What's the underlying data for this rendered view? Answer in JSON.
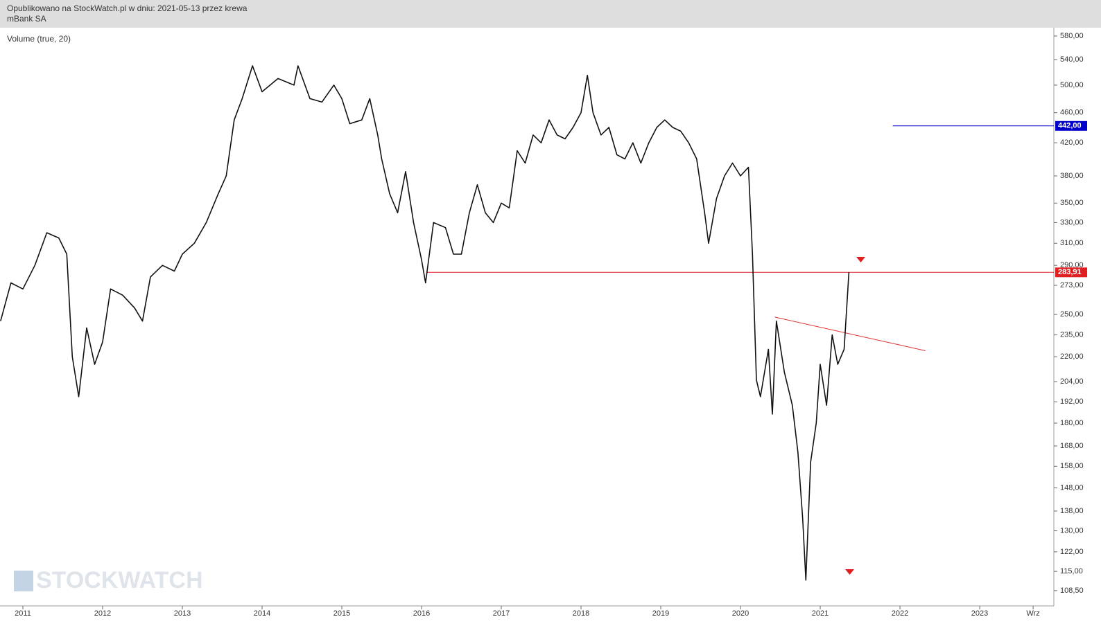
{
  "header": {
    "line1": "Opublikowano na StockWatch.pl w dniu: 2021-05-13 przez krewa",
    "line2": "mBank SA"
  },
  "watermark": "STOCKWATCH",
  "chart_data": {
    "type": "line",
    "indicator_label": "Volume (true, 20)",
    "log_y": true,
    "xlim": [
      2010.713,
      2023.93
    ],
    "xticks": [
      2011,
      2012,
      2013,
      2014,
      2015,
      2016,
      2017,
      2018,
      2019,
      2020,
      2021,
      2022,
      2023,
      {
        "value": 2023.67,
        "label": "Wrz"
      }
    ],
    "ylim": [
      103.6,
      594.7
    ],
    "yticks": [
      {
        "value": 108.5,
        "label": "108,50"
      },
      {
        "value": 115,
        "label": "115,00"
      },
      {
        "value": 122,
        "label": "122,00"
      },
      {
        "value": 130,
        "label": "130,00"
      },
      {
        "value": 138,
        "label": "138,00"
      },
      {
        "value": 148,
        "label": "148,00"
      },
      {
        "value": 158,
        "label": "158,00"
      },
      {
        "value": 168,
        "label": "168,00"
      },
      {
        "value": 180,
        "label": "180,00"
      },
      {
        "value": 192,
        "label": "192,00"
      },
      {
        "value": 204,
        "label": "204,00"
      },
      {
        "value": 220,
        "label": "220,00"
      },
      {
        "value": 235,
        "label": "235,00"
      },
      {
        "value": 250,
        "label": "250,00"
      },
      {
        "value": 273,
        "label": "273,00"
      },
      {
        "value": 290,
        "label": "290,00"
      },
      {
        "value": 310,
        "label": "310,00"
      },
      {
        "value": 330,
        "label": "330,00"
      },
      {
        "value": 350,
        "label": "350,00"
      },
      {
        "value": 380,
        "label": "380,00"
      },
      {
        "value": 420,
        "label": "420,00"
      },
      {
        "value": 460,
        "label": "460,00"
      },
      {
        "value": 500,
        "label": "500,00"
      },
      {
        "value": 540,
        "label": "540,00"
      },
      {
        "value": 580,
        "label": "580,00"
      }
    ],
    "series": [
      {
        "name": "mBank SA",
        "color": "#111111",
        "x": [
          2010.72,
          2010.85,
          2011.0,
          2011.15,
          2011.3,
          2011.45,
          2011.55,
          2011.62,
          2011.7,
          2011.8,
          2011.9,
          2012.0,
          2012.1,
          2012.25,
          2012.4,
          2012.5,
          2012.6,
          2012.75,
          2012.9,
          2013.0,
          2013.15,
          2013.3,
          2013.45,
          2013.55,
          2013.65,
          2013.75,
          2013.88,
          2014.0,
          2014.2,
          2014.4,
          2014.45,
          2014.6,
          2014.75,
          2014.9,
          2015.0,
          2015.1,
          2015.25,
          2015.35,
          2015.45,
          2015.5,
          2015.6,
          2015.7,
          2015.8,
          2015.9,
          2016.0,
          2016.05,
          2016.15,
          2016.3,
          2016.4,
          2016.5,
          2016.6,
          2016.7,
          2016.8,
          2016.9,
          2017.0,
          2017.1,
          2017.2,
          2017.3,
          2017.4,
          2017.5,
          2017.6,
          2017.7,
          2017.8,
          2017.9,
          2018.0,
          2018.08,
          2018.15,
          2018.25,
          2018.35,
          2018.45,
          2018.55,
          2018.65,
          2018.75,
          2018.85,
          2018.95,
          2019.05,
          2019.15,
          2019.25,
          2019.35,
          2019.45,
          2019.55,
          2019.6,
          2019.7,
          2019.8,
          2019.9,
          2020.0,
          2020.1,
          2020.15,
          2020.2,
          2020.25,
          2020.35,
          2020.4,
          2020.45,
          2020.55,
          2020.65,
          2020.72,
          2020.78,
          2020.82,
          2020.88,
          2020.95,
          2021.0,
          2021.08,
          2021.15,
          2021.22,
          2021.3,
          2021.36
        ],
        "values": [
          245,
          275,
          270,
          290,
          320,
          315,
          300,
          220,
          195,
          240,
          215,
          230,
          270,
          265,
          255,
          245,
          280,
          290,
          285,
          300,
          310,
          330,
          360,
          380,
          450,
          480,
          530,
          490,
          510,
          500,
          530,
          480,
          475,
          500,
          480,
          445,
          450,
          480,
          430,
          400,
          360,
          340,
          385,
          330,
          295,
          275,
          330,
          325,
          300,
          300,
          340,
          370,
          340,
          330,
          350,
          345,
          410,
          395,
          430,
          420,
          450,
          430,
          425,
          440,
          460,
          515,
          460,
          430,
          440,
          405,
          400,
          420,
          395,
          420,
          440,
          450,
          440,
          435,
          420,
          400,
          340,
          310,
          355,
          380,
          395,
          380,
          390,
          300,
          205,
          195,
          225,
          185,
          245,
          210,
          190,
          165,
          135,
          112,
          160,
          180,
          215,
          190,
          235,
          215,
          225,
          283.91
        ]
      }
    ],
    "levels": [
      {
        "value": 442,
        "label": "442,00",
        "color": "#0000cc",
        "x_start": 2021.91
      },
      {
        "value": 283.91,
        "label": "283,91",
        "color": "#e02020",
        "x_start": 2016.07
      }
    ],
    "trendline": {
      "color": "#e03030",
      "x": [
        2020.43,
        2022.32
      ],
      "y": [
        248,
        224
      ]
    }
  }
}
